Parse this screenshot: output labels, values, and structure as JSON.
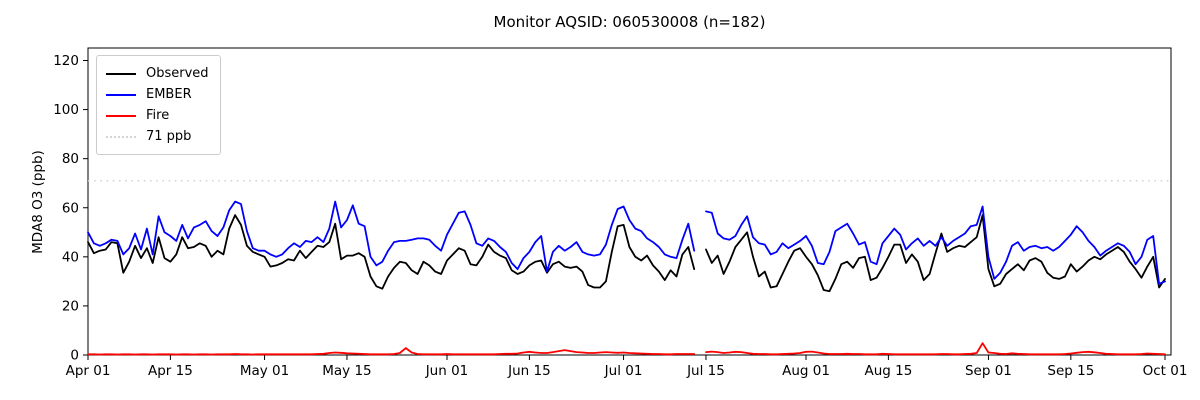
{
  "figure": {
    "title": "Monitor AQSID: 060530008 (n=182)"
  },
  "chart_data": {
    "type": "line",
    "title": "Monitor AQSID: 060530008 (n=182)",
    "xlabel": "",
    "ylabel": "MDA8 O3 (ppb)",
    "ylim": [
      0,
      125
    ],
    "grid": false,
    "legend_position": "upper left",
    "x_axis_note": "daily values, day index 0 = Apr 01",
    "x_ticks": [
      {
        "label": "Apr 01",
        "day": 0
      },
      {
        "label": "Apr 15",
        "day": 14
      },
      {
        "label": "May 01",
        "day": 30
      },
      {
        "label": "May 15",
        "day": 44
      },
      {
        "label": "Jun 01",
        "day": 61
      },
      {
        "label": "Jun 15",
        "day": 75
      },
      {
        "label": "Jul 01",
        "day": 91
      },
      {
        "label": "Jul 15",
        "day": 105
      },
      {
        "label": "Aug 01",
        "day": 122
      },
      {
        "label": "Aug 15",
        "day": 136
      },
      {
        "label": "Sep 01",
        "day": 153
      },
      {
        "label": "Sep 15",
        "day": 167
      },
      {
        "label": "Oct 01",
        "day": 183
      }
    ],
    "y_ticks": [
      0,
      20,
      40,
      60,
      80,
      100,
      120
    ],
    "threshold": {
      "label": "71 ppb",
      "value": 71,
      "color": "#d3d3d3",
      "style": "dotted"
    },
    "series": [
      {
        "name": "Observed",
        "color": "#000000",
        "style": "solid",
        "values": [
          46,
          41.5,
          42.5,
          43,
          46,
          45.5,
          33.5,
          38,
          44.5,
          39.5,
          43.5,
          37.5,
          48,
          39.5,
          38,
          41,
          48,
          43.5,
          44,
          45.5,
          44.5,
          40,
          42.5,
          41,
          51.5,
          57,
          53,
          44.5,
          42,
          41,
          40,
          36,
          36.5,
          37.5,
          39,
          38.5,
          42.5,
          39.5,
          42,
          44.5,
          44,
          46,
          53.5,
          39,
          40.5,
          40.5,
          41.5,
          40,
          32,
          28,
          27,
          32,
          35.5,
          38,
          37.5,
          34.5,
          33,
          38,
          36.5,
          34,
          33,
          38.5,
          41,
          43.5,
          42.5,
          37,
          36.5,
          40,
          45,
          42,
          40.5,
          39.5,
          34.5,
          33,
          34,
          36.5,
          38,
          38.5,
          33.5,
          37,
          38,
          36,
          35.5,
          36,
          34,
          28.5,
          27.5,
          27.5,
          30,
          42,
          52.5,
          53,
          44,
          40,
          38.5,
          40.5,
          36.5,
          34,
          30.5,
          34.5,
          32,
          41,
          44,
          35,
          null,
          43,
          37.5,
          40.5,
          33,
          38,
          44,
          47,
          50,
          40,
          32,
          34,
          27.5,
          28,
          33,
          38,
          42.5,
          43.5,
          40,
          37,
          32.5,
          26.5,
          26,
          31,
          37,
          38,
          35.5,
          39.5,
          40,
          30.5,
          31.5,
          35.5,
          40,
          45,
          45,
          37.5,
          41,
          38,
          30.5,
          33,
          41.5,
          49.5,
          42,
          43.5,
          44.5,
          44,
          46,
          48,
          57,
          35,
          28,
          29,
          33,
          35,
          37,
          34.5,
          38.5,
          39.5,
          38,
          33.5,
          31.5,
          31,
          32,
          37,
          34,
          36,
          38.5,
          40,
          39,
          41,
          42.5,
          44,
          42,
          38,
          35,
          31.5,
          36,
          40,
          27.5,
          31
        ]
      },
      {
        "name": "EMBER",
        "color": "#0000ff",
        "style": "solid",
        "values": [
          50,
          45.5,
          44.5,
          45.5,
          47,
          46.5,
          41,
          43.5,
          49.5,
          43,
          51.5,
          41,
          56.5,
          50,
          48.5,
          46.5,
          53,
          47.5,
          52,
          53,
          54.5,
          50.5,
          48.5,
          52,
          59,
          62.5,
          61.5,
          50.5,
          43.5,
          42.5,
          42.5,
          41,
          40,
          41,
          43.5,
          45.5,
          44,
          46.5,
          46,
          48,
          46,
          51.5,
          62.5,
          52,
          55,
          61,
          53.5,
          52.5,
          40,
          36.5,
          38,
          42.5,
          46,
          46.5,
          46.5,
          47,
          47.5,
          47.5,
          47,
          44.5,
          42.5,
          49,
          53.5,
          58,
          58.5,
          53,
          45.5,
          44.5,
          47.5,
          46.5,
          44,
          42,
          37.5,
          35,
          39.5,
          42,
          46,
          48.5,
          34,
          42,
          44.5,
          42.5,
          44,
          46,
          42,
          41,
          40.5,
          41,
          45,
          53,
          59.5,
          60.5,
          55,
          51.5,
          50.5,
          47.5,
          46,
          44,
          41,
          40,
          39.5,
          47,
          53.5,
          42.5,
          null,
          58.5,
          58,
          49.5,
          47.5,
          47,
          48.5,
          53,
          56.5,
          48,
          45.5,
          45,
          41,
          42,
          45.5,
          43.5,
          45,
          46.5,
          48.5,
          44.5,
          37.5,
          37,
          42,
          50.5,
          52,
          53.5,
          49.5,
          45,
          46,
          38,
          37,
          45.5,
          48.5,
          51.5,
          49,
          43,
          45.5,
          47.5,
          44.5,
          46.5,
          44.5,
          48,
          44.5,
          46.5,
          48,
          49.5,
          52.5,
          53,
          60.5,
          40,
          31,
          33.5,
          38,
          44.5,
          46,
          42.5,
          44,
          44.5,
          43.5,
          44,
          42.5,
          44,
          46.5,
          49,
          52.5,
          50,
          46.5,
          44,
          40.5,
          42.5,
          44,
          45.5,
          44.5,
          42,
          37,
          40,
          47,
          48.5,
          29,
          30
        ]
      },
      {
        "name": "Fire",
        "color": "#ff0000",
        "style": "solid",
        "values": [
          0.3,
          0.3,
          0.2,
          0.3,
          0.3,
          0.2,
          0.3,
          0.3,
          0.2,
          0.3,
          0.3,
          0.2,
          0.3,
          0.3,
          0.3,
          0.2,
          0.3,
          0.3,
          0.2,
          0.3,
          0.3,
          0.2,
          0.3,
          0.3,
          0.3,
          0.4,
          0.3,
          0.3,
          0.2,
          0.3,
          0.3,
          0.3,
          0.3,
          0.3,
          0.3,
          0.3,
          0.3,
          0.3,
          0.3,
          0.4,
          0.5,
          0.8,
          1.0,
          0.9,
          0.7,
          0.6,
          0.5,
          0.4,
          0.3,
          0.3,
          0.3,
          0.3,
          0.4,
          0.8,
          2.8,
          1.0,
          0.4,
          0.3,
          0.3,
          0.3,
          0.3,
          0.4,
          0.3,
          0.3,
          0.3,
          0.3,
          0.3,
          0.3,
          0.3,
          0.3,
          0.4,
          0.5,
          0.5,
          0.6,
          1.0,
          1.3,
          1.0,
          0.8,
          0.8,
          1.2,
          1.6,
          2.0,
          1.6,
          1.2,
          1.0,
          0.8,
          0.8,
          1.0,
          1.2,
          1.0,
          0.9,
          1.0,
          0.8,
          0.7,
          0.6,
          0.5,
          0.4,
          0.4,
          0.3,
          0.3,
          0.4,
          0.4,
          0.4,
          0.4,
          null,
          1.2,
          1.4,
          1.2,
          0.8,
          1.0,
          1.3,
          1.2,
          0.8,
          0.5,
          0.4,
          0.4,
          0.3,
          0.3,
          0.4,
          0.5,
          0.6,
          0.8,
          1.3,
          1.4,
          1.0,
          0.6,
          0.4,
          0.4,
          0.4,
          0.5,
          0.4,
          0.4,
          0.3,
          0.3,
          0.3,
          0.5,
          0.4,
          0.3,
          0.3,
          0.3,
          0.3,
          0.3,
          0.3,
          0.3,
          0.3,
          0.4,
          0.4,
          0.3,
          0.3,
          0.4,
          0.5,
          0.8,
          4.8,
          1.0,
          0.8,
          0.5,
          0.4,
          0.7,
          0.5,
          0.4,
          0.3,
          0.3,
          0.3,
          0.3,
          0.3,
          0.3,
          0.4,
          0.6,
          0.9,
          1.2,
          1.3,
          1.1,
          0.8,
          0.5,
          0.4,
          0.3,
          0.3,
          0.3,
          0.3,
          0.4,
          0.6,
          0.5,
          0.4,
          0.3
        ]
      }
    ]
  }
}
